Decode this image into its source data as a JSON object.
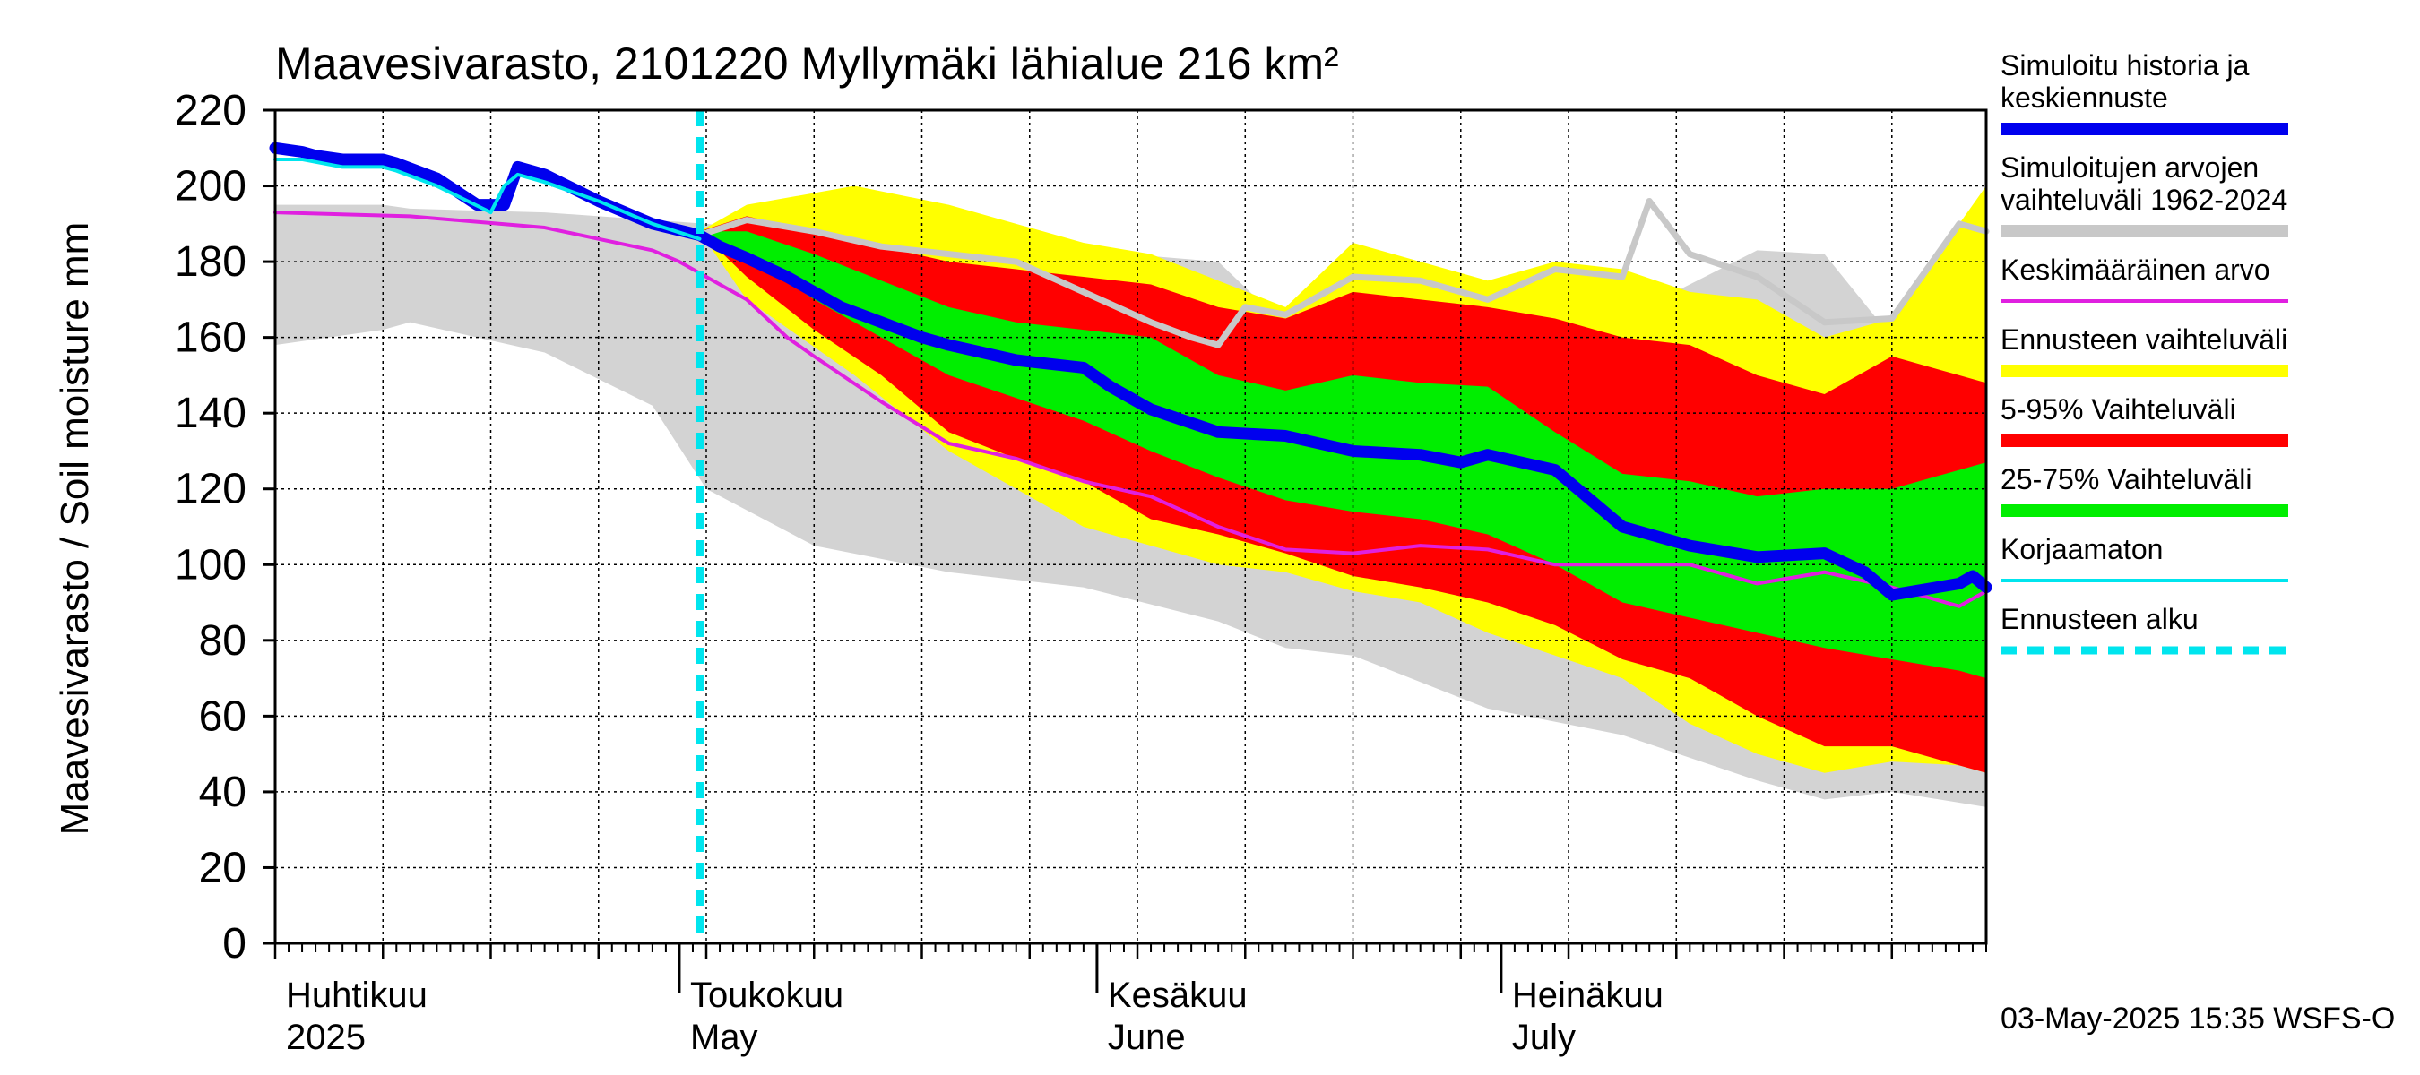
{
  "chart_data": {
    "type": "area",
    "title": "Maavesivarasto, 2101220 Myllymäki lähialue 216 km²",
    "ylabel": "Maavesivarasto / Soil moisture   mm",
    "xlabel": "",
    "ylim": [
      0,
      220
    ],
    "xlim_days": [
      0,
      127
    ],
    "x_unit": "days since 2025-04-01",
    "yticks": [
      0,
      20,
      40,
      60,
      80,
      100,
      120,
      140,
      160,
      180,
      200,
      220
    ],
    "month_labels": [
      {
        "day": 0,
        "fi": "Huhtikuu",
        "en": "2025"
      },
      {
        "day": 30,
        "fi": "Toukokuu",
        "en": "May"
      },
      {
        "day": 61,
        "fi": "Kesäkuu",
        "en": "June"
      },
      {
        "day": 91,
        "fi": "Heinäkuu",
        "en": "July"
      }
    ],
    "forecast_start_day": 31.5,
    "timestamp": "03-May-2025 15:35 WSFS-O",
    "legend": [
      {
        "label": "Simuloitu historia ja keskiennuste",
        "color": "#0000ee",
        "style": "thick"
      },
      {
        "label": "Simuloitujen arvojen vaihteluväli 1962-2024",
        "color": "#c8c8c8",
        "style": "thick"
      },
      {
        "label": "Keskimääräinen arvo",
        "color": "#e020e0",
        "style": "thin"
      },
      {
        "label": "Ennusteen vaihteluväli",
        "color": "#ffff00",
        "style": "thick"
      },
      {
        "label": "5-95% Vaihteluväli",
        "color": "#ff0000",
        "style": "thick"
      },
      {
        "label": "25-75% Vaihteluväli",
        "color": "#00ee00",
        "style": "thick"
      },
      {
        "label": "Korjaamaton",
        "color": "#00e5ee",
        "style": "thin"
      },
      {
        "label": "Ennusteen alku",
        "color": "#00e5ee",
        "style": "dashed"
      }
    ],
    "series": [
      {
        "name": "hist_range",
        "color": "#d3d3d3",
        "days": [
          0,
          8,
          10,
          20,
          28,
          32,
          40,
          50,
          60,
          70,
          75,
          80,
          90,
          100,
          110,
          115,
          120,
          127
        ],
        "upper": [
          195,
          195,
          194,
          193,
          191,
          190,
          187,
          185,
          183,
          180,
          163,
          168,
          170,
          165,
          183,
          182,
          160,
          190
        ],
        "lower": [
          158,
          162,
          164,
          156,
          142,
          120,
          105,
          98,
          94,
          85,
          78,
          76,
          62,
          55,
          43,
          38,
          40,
          36
        ]
      },
      {
        "name": "forecast_range",
        "color": "#ffff00",
        "days": [
          31.5,
          35,
          43,
          50,
          55,
          60,
          65,
          70,
          75,
          80,
          85,
          90,
          95,
          100,
          105,
          110,
          115,
          120,
          125,
          127
        ],
        "upper": [
          188,
          195,
          200,
          195,
          190,
          185,
          182,
          175,
          168,
          185,
          180,
          175,
          180,
          178,
          172,
          170,
          160,
          165,
          190,
          200
        ],
        "lower": [
          188,
          170,
          150,
          130,
          120,
          110,
          105,
          100,
          98,
          93,
          90,
          82,
          76,
          70,
          58,
          50,
          45,
          48,
          47,
          45
        ]
      },
      {
        "name": "p5_95",
        "color": "#ff0000",
        "days": [
          31.5,
          35,
          40,
          45,
          50,
          55,
          60,
          65,
          70,
          75,
          80,
          85,
          90,
          95,
          100,
          105,
          110,
          115,
          120,
          125,
          127
        ],
        "upper": [
          188,
          192,
          188,
          184,
          180,
          178,
          176,
          174,
          168,
          165,
          172,
          170,
          168,
          165,
          160,
          158,
          150,
          145,
          155,
          150,
          148
        ],
        "lower": [
          188,
          176,
          162,
          150,
          135,
          128,
          122,
          112,
          108,
          103,
          97,
          94,
          90,
          84,
          75,
          70,
          60,
          52,
          52,
          47,
          45
        ]
      },
      {
        "name": "p25_75",
        "color": "#00ee00",
        "days": [
          31.5,
          35,
          40,
          45,
          50,
          55,
          60,
          65,
          70,
          75,
          80,
          85,
          90,
          95,
          100,
          105,
          110,
          115,
          120,
          125,
          127
        ],
        "upper": [
          188,
          188,
          182,
          175,
          168,
          164,
          162,
          160,
          150,
          146,
          150,
          148,
          147,
          135,
          124,
          122,
          118,
          120,
          120,
          125,
          127
        ],
        "lower": [
          188,
          182,
          170,
          160,
          150,
          144,
          138,
          130,
          123,
          117,
          114,
          112,
          108,
          100,
          90,
          86,
          82,
          78,
          75,
          72,
          70
        ]
      },
      {
        "name": "median_forecast",
        "color": "#c8c8c8",
        "days": [
          31.5,
          35,
          40,
          45,
          50,
          55,
          60,
          65,
          68,
          70,
          72,
          75,
          80,
          85,
          90,
          95,
          100,
          102,
          105,
          110,
          115,
          120,
          125,
          127
        ],
        "values": [
          187,
          191,
          188,
          184,
          182,
          180,
          172,
          164,
          160,
          158,
          168,
          166,
          176,
          175,
          170,
          178,
          176,
          196,
          182,
          176,
          164,
          165,
          190,
          188
        ]
      },
      {
        "name": "Keskimääräinen arvo",
        "color": "#e020e0",
        "days": [
          0,
          10,
          20,
          28,
          30,
          32,
          35,
          38,
          40,
          45,
          50,
          55,
          60,
          65,
          70,
          75,
          80,
          85,
          90,
          95,
          100,
          105,
          110,
          115,
          120,
          125,
          127
        ],
        "values": [
          193,
          192,
          189,
          183,
          180,
          176,
          170,
          160,
          155,
          143,
          132,
          128,
          122,
          118,
          110,
          104,
          103,
          105,
          104,
          100,
          100,
          100,
          95,
          98,
          94,
          89,
          93
        ]
      },
      {
        "name": "Korjaamaton",
        "color": "#00e5ee",
        "days": [
          0,
          2,
          5,
          8,
          9,
          12,
          16,
          17,
          18,
          20,
          24,
          28,
          31.5
        ],
        "values": [
          207,
          207,
          205,
          205,
          204,
          200,
          193,
          200,
          203,
          201,
          196,
          190,
          186
        ]
      },
      {
        "name": "Simuloitu historia ja keskiennuste",
        "color": "#0000ee",
        "days": [
          0,
          2,
          3,
          5,
          6,
          8,
          9,
          12,
          15,
          17,
          18,
          20,
          24,
          28,
          31.5,
          33,
          35,
          38,
          40,
          42,
          45,
          48,
          50,
          55,
          60,
          62,
          65,
          70,
          75,
          80,
          85,
          88,
          90,
          95,
          100,
          105,
          110,
          115,
          118,
          120,
          125,
          126,
          127
        ],
        "values": [
          210,
          209,
          208,
          207,
          207,
          207,
          206,
          202,
          195,
          195,
          205,
          203,
          196,
          190,
          187,
          184,
          181,
          176,
          172,
          168,
          164,
          160,
          158,
          154,
          152,
          147,
          141,
          135,
          134,
          130,
          129,
          127,
          129,
          125,
          110,
          105,
          102,
          103,
          98,
          92,
          95,
          97,
          94
        ]
      }
    ]
  }
}
